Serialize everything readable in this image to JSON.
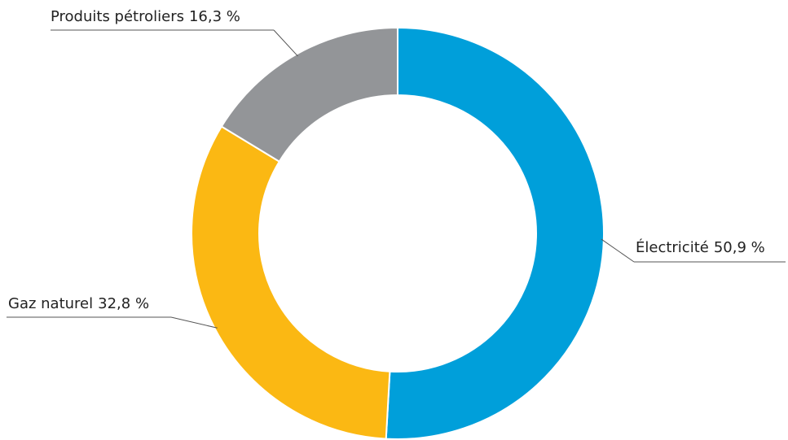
{
  "chart_data": {
    "type": "donut",
    "categories": [
      "Électricité",
      "Gaz naturel",
      "Produits pétroliers"
    ],
    "values": [
      50.9,
      32.8,
      16.3
    ],
    "value_labels": [
      "50,9 %",
      "32,8 %",
      "16,3 %"
    ],
    "colors": [
      "#009fda",
      "#fbb813",
      "#939598"
    ]
  }
}
